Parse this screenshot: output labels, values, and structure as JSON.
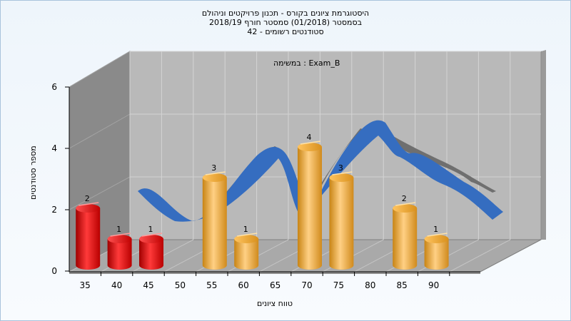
{
  "chart_data": {
    "type": "bar",
    "title_lines": [
      "היסטוגרמת ציונים בקורס - תכנון פרויקטים וניהולם",
      "בסמסטר  (01/2018)  סמסטר חורף 2018/19",
      "סטודנטים רשומים - 42"
    ],
    "annotation": "במשימה : Exam_B",
    "xlabel": "טווח ציונים",
    "ylabel": "מספר סטודנטים",
    "categories": [
      "35",
      "40",
      "45",
      "50",
      "55",
      "60",
      "65",
      "70",
      "75",
      "80",
      "85",
      "90"
    ],
    "values": [
      2,
      1,
      1,
      0,
      3,
      1,
      0,
      4,
      3,
      0,
      2,
      1
    ],
    "y_ticks": [
      "0",
      "2",
      "4",
      "6"
    ],
    "ylim": [
      0,
      6
    ],
    "grid": true,
    "colors": {
      "failing_bar": "#e11a1a",
      "passing_bar": "#f0a830",
      "ribbon_front": "#3a6fc0",
      "ribbon_back": "#7a7a7a",
      "back_wall": "#b9b9b9",
      "side_wall": "#8a8a8a",
      "floor": "#a9a9a9"
    }
  }
}
